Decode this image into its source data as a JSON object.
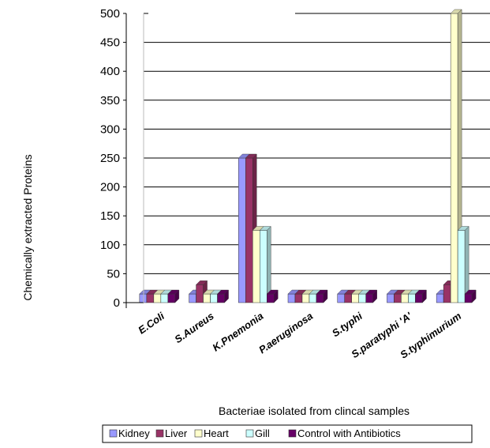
{
  "chart_data": {
    "type": "bar",
    "title": "",
    "xlabel": "Bacteriae isolated from clincal samples",
    "ylabel": "Chemically extracted Proteins",
    "ylim": [
      0,
      500
    ],
    "yticks": [
      0,
      50,
      100,
      150,
      200,
      250,
      300,
      350,
      400,
      450,
      500
    ],
    "grid": true,
    "legend_position": "bottom",
    "categories": [
      "E.Coli",
      "S.Aureus",
      "K.Pnemonia",
      "P.aeruginosa",
      "S.typhi",
      "S.paratyphi 'A'",
      "S.typhimurium"
    ],
    "series": [
      {
        "name": "Kidney",
        "color": "#9999ff",
        "values": [
          15,
          15,
          250,
          15,
          15,
          15,
          15
        ]
      },
      {
        "name": "Liver",
        "color": "#993366",
        "values": [
          15,
          31,
          250,
          15,
          15,
          15,
          31
        ]
      },
      {
        "name": "Heart",
        "color": "#ffffcc",
        "values": [
          15,
          15,
          125,
          15,
          15,
          15,
          500
        ]
      },
      {
        "name": "Gill",
        "color": "#ccffff",
        "values": [
          15,
          15,
          125,
          15,
          15,
          15,
          125
        ]
      },
      {
        "name": "Control with Antibiotics",
        "color": "#660066",
        "values": [
          15,
          15,
          15,
          15,
          15,
          15,
          15
        ]
      }
    ]
  }
}
